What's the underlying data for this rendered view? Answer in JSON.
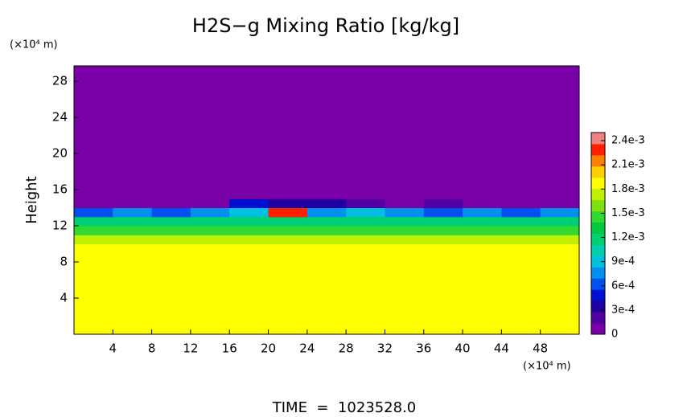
{
  "chart_data": {
    "type": "heatmap",
    "title": "H2S−g Mixing Ratio [kg/kg]",
    "y_unit": "(×10⁴ m)",
    "x_unit": "(×10⁴ m)",
    "y_label": "Height",
    "footer": "TIME  =  1023528.0",
    "xlim": [
      0,
      52
    ],
    "ylim": [
      0,
      29.7
    ],
    "xticks": [
      4,
      8,
      12,
      16,
      20,
      24,
      28,
      32,
      36,
      40,
      44,
      48
    ],
    "yticks": [
      4,
      8,
      12,
      16,
      20,
      24,
      28
    ],
    "x_edges": [
      0,
      4,
      8,
      12,
      16,
      20,
      24,
      28,
      32,
      36,
      40,
      44,
      48,
      52
    ],
    "y_edges": [
      0,
      10,
      11,
      12,
      13,
      14,
      15,
      29.7
    ],
    "values": [
      [
        0.00185,
        0.00185,
        0.00185,
        0.00185,
        0.00185,
        0.00185,
        0.00185,
        0.00185,
        0.00185,
        0.00185,
        0.00185,
        0.00185,
        0.00185
      ],
      [
        0.0017,
        0.0017,
        0.0017,
        0.0017,
        0.0017,
        0.0017,
        0.0017,
        0.0017,
        0.0017,
        0.0017,
        0.0017,
        0.0017,
        0.0017
      ],
      [
        0.0015,
        0.0015,
        0.0015,
        0.0015,
        0.0014,
        0.0014,
        0.0015,
        0.0015,
        0.0015,
        0.0015,
        0.0015,
        0.0015,
        0.0015
      ],
      [
        0.0012,
        0.0012,
        0.0012,
        0.0012,
        0.0012,
        0.0012,
        0.0012,
        0.0012,
        0.0012,
        0.0012,
        0.0012,
        0.0012,
        0.0012
      ],
      [
        0.0006,
        0.0007,
        0.0006,
        0.0008,
        0.0009,
        0.00225,
        0.0008,
        0.0009,
        0.0007,
        0.0006,
        0.0007,
        0.0006,
        0.0008
      ],
      [
        0,
        0,
        0,
        0.0001,
        0.0005,
        0.0003,
        0.0004,
        0.0002,
        0.0001,
        0.0002,
        0.0001,
        0,
        0
      ],
      [
        0,
        0,
        0,
        0,
        0,
        0,
        0,
        0,
        0,
        0,
        0,
        0,
        0
      ]
    ],
    "colorbar": {
      "lim": [
        0,
        0.0025
      ],
      "ticks": [
        0,
        {
          "value": 0.0003,
          "label": "3e-4"
        },
        {
          "value": 0.0006,
          "label": "6e-4"
        },
        {
          "value": 0.0009,
          "label": "9e-4"
        },
        {
          "value": 0.0012,
          "label": "1.2e-3"
        },
        {
          "value": 0.0015,
          "label": "1.5e-3"
        },
        {
          "value": 0.0018,
          "label": "1.8e-3"
        },
        {
          "value": 0.0021,
          "label": "2.1e-3"
        },
        {
          "value": 0.0024,
          "label": "2.4e-3"
        }
      ],
      "colors": [
        "#7a00a8",
        "#5000a0",
        "#2000a0",
        "#0010d0",
        "#0050f0",
        "#0090f0",
        "#00c0e0",
        "#00d0b0",
        "#00d070",
        "#00c840",
        "#30d830",
        "#80e010",
        "#c0f000",
        "#ffff00",
        "#ffd000",
        "#ff8000",
        "#ff2000",
        "#f08080"
      ]
    }
  }
}
